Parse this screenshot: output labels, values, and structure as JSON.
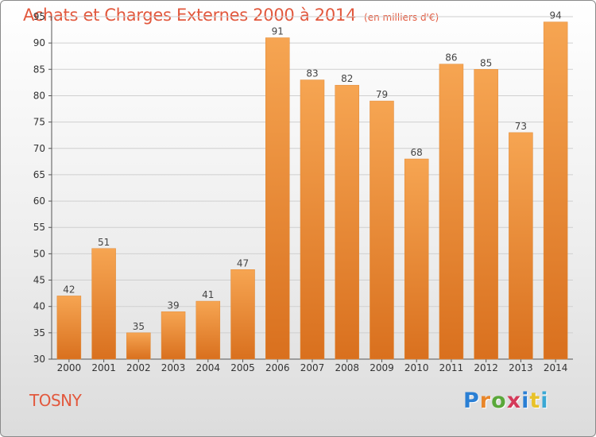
{
  "header": {
    "title": "Achats et Charges Externes 2000 à 2014",
    "unit_note": "(en milliers d'€)"
  },
  "place_name": "TOSNY",
  "brand": {
    "letters": [
      "P",
      "r",
      "o",
      "x",
      "i",
      "t",
      "i"
    ],
    "colors": [
      "#2a7fd4",
      "#e8862a",
      "#5aa83a",
      "#d43a5a",
      "#2a7fd4",
      "#e8c22a",
      "#3aa8d4"
    ]
  },
  "chart_data": {
    "type": "bar",
    "title": "Achats et Charges Externes 2000 à 2014",
    "subtitle": "(en milliers d'€)",
    "categories": [
      "2000",
      "2001",
      "2002",
      "2003",
      "2004",
      "2005",
      "2006",
      "2007",
      "2008",
      "2009",
      "2010",
      "2011",
      "2012",
      "2013",
      "2014"
    ],
    "values": [
      42,
      51,
      35,
      39,
      41,
      47,
      91,
      83,
      82,
      79,
      68,
      86,
      85,
      73,
      94
    ],
    "ylim": [
      30,
      95
    ],
    "yticks": [
      30,
      35,
      40,
      45,
      50,
      55,
      60,
      65,
      70,
      75,
      80,
      85,
      90,
      95
    ],
    "grid": true,
    "bar_color": "#f0963c",
    "xlabel": "",
    "ylabel": ""
  }
}
